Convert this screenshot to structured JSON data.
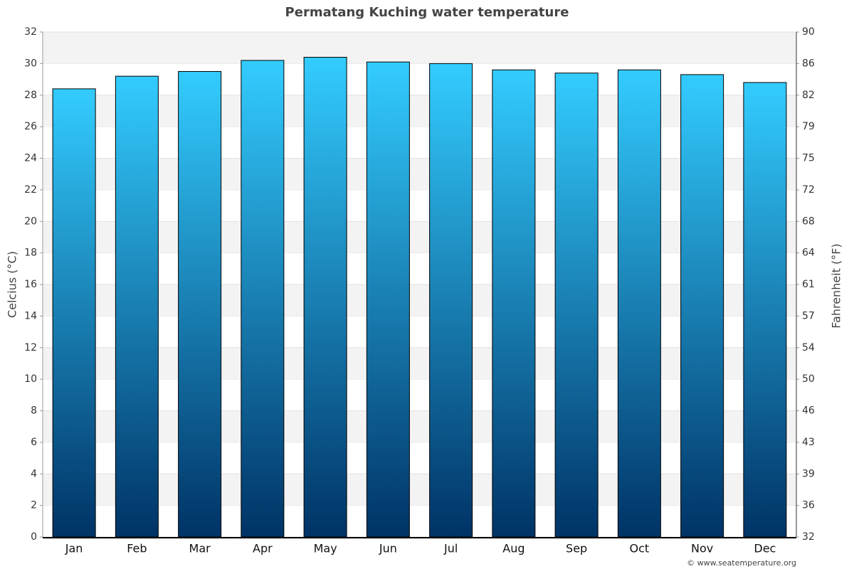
{
  "chart_data": {
    "type": "bar",
    "title": "Permatang Kuching water temperature",
    "categories": [
      "Jan",
      "Feb",
      "Mar",
      "Apr",
      "May",
      "Jun",
      "Jul",
      "Aug",
      "Sep",
      "Oct",
      "Nov",
      "Dec"
    ],
    "values": [
      28.4,
      29.2,
      29.5,
      30.2,
      30.4,
      30.1,
      30.0,
      29.6,
      29.4,
      29.6,
      29.3,
      28.8
    ],
    "color": {
      "top": "#33ccff",
      "bottom": "#003366"
    },
    "ylabel": "Celcius (°C)",
    "y2label": "Fahrenheit (°F)",
    "ylim": [
      0,
      32
    ],
    "yticks": [
      0,
      2,
      4,
      6,
      8,
      10,
      12,
      14,
      16,
      18,
      20,
      22,
      24,
      26,
      28,
      30,
      32
    ],
    "y2lim": [
      32,
      89.6
    ],
    "y2ticks": [
      32,
      {
        "value": 35.6,
        "label": "36"
      },
      {
        "value": 39.2,
        "label": "39"
      },
      {
        "value": 42.8,
        "label": "43"
      },
      {
        "value": 46.4,
        "label": "46"
      },
      50,
      {
        "value": 53.6,
        "label": "54"
      },
      {
        "value": 57.2,
        "label": "57"
      },
      {
        "value": 60.8,
        "label": "61"
      },
      {
        "value": 64.4,
        "label": "64"
      },
      68,
      {
        "value": 71.6,
        "label": "72"
      },
      {
        "value": 75.2,
        "label": "75"
      },
      {
        "value": 78.8,
        "label": "79"
      },
      {
        "value": 82.4,
        "label": "82"
      },
      86,
      {
        "value": 89.6,
        "label": "90"
      }
    ],
    "grid": true,
    "credit": "© www.seatemperature.org"
  }
}
